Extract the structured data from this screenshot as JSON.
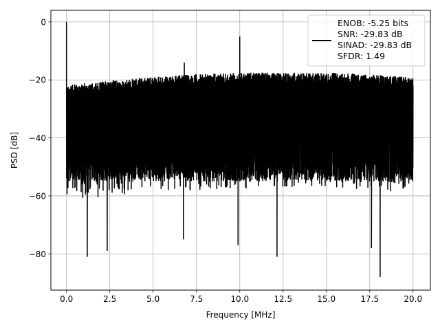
{
  "chart_data": {
    "type": "line",
    "title": "",
    "xlabel": "Frequency [MHz]",
    "ylabel": "PSD [dB]",
    "xlim": [
      -0.9,
      21.0
    ],
    "ylim": [
      -92.5,
      4.0
    ],
    "grid": true,
    "xticks": [
      0.0,
      2.5,
      5.0,
      7.5,
      10.0,
      12.5,
      15.0,
      17.5,
      20.0
    ],
    "xtick_labels": [
      "0.0",
      "2.5",
      "5.0",
      "7.5",
      "10.0",
      "12.5",
      "15.0",
      "17.5",
      "20.0"
    ],
    "yticks": [
      0,
      -20,
      -40,
      -60,
      -80
    ],
    "ytick_labels": [
      "0",
      "−20",
      "−40",
      "−60",
      "−80"
    ],
    "legend_location": "top-right",
    "legend_lines": [
      "ENOB: -5.25 bits",
      "SNR: -29.83 dB",
      "SINAD: -29.83 dB",
      "SFDR: 1.49"
    ],
    "series_color": "#000000",
    "series": [
      {
        "name": "",
        "x_range": [
          0.0,
          20.0
        ],
        "noise_floor_upper": [
          [
            0.0,
            -22
          ],
          [
            1.0,
            -21
          ],
          [
            2.0,
            -20.5
          ],
          [
            3.0,
            -20
          ],
          [
            4.0,
            -19.5
          ],
          [
            5.0,
            -19
          ],
          [
            7.5,
            -18
          ],
          [
            10.0,
            -17.5
          ],
          [
            12.5,
            -17.5
          ],
          [
            15.0,
            -17.5
          ],
          [
            17.5,
            -18
          ],
          [
            20.0,
            -19
          ]
        ],
        "noise_floor_lower": -58,
        "spurs": [
          {
            "x": 0.0,
            "y": 0.0
          },
          {
            "x": 6.8,
            "y": -14.0
          },
          {
            "x": 10.0,
            "y": -5.0
          }
        ],
        "notable_minima": [
          {
            "x": 1.2,
            "y": -81.0
          },
          {
            "x": 2.35,
            "y": -79.0
          },
          {
            "x": 6.75,
            "y": -75.0
          },
          {
            "x": 9.9,
            "y": -77.0
          },
          {
            "x": 12.15,
            "y": -81.0
          },
          {
            "x": 17.6,
            "y": -78.0
          },
          {
            "x": 18.1,
            "y": -88.0
          }
        ]
      }
    ]
  }
}
